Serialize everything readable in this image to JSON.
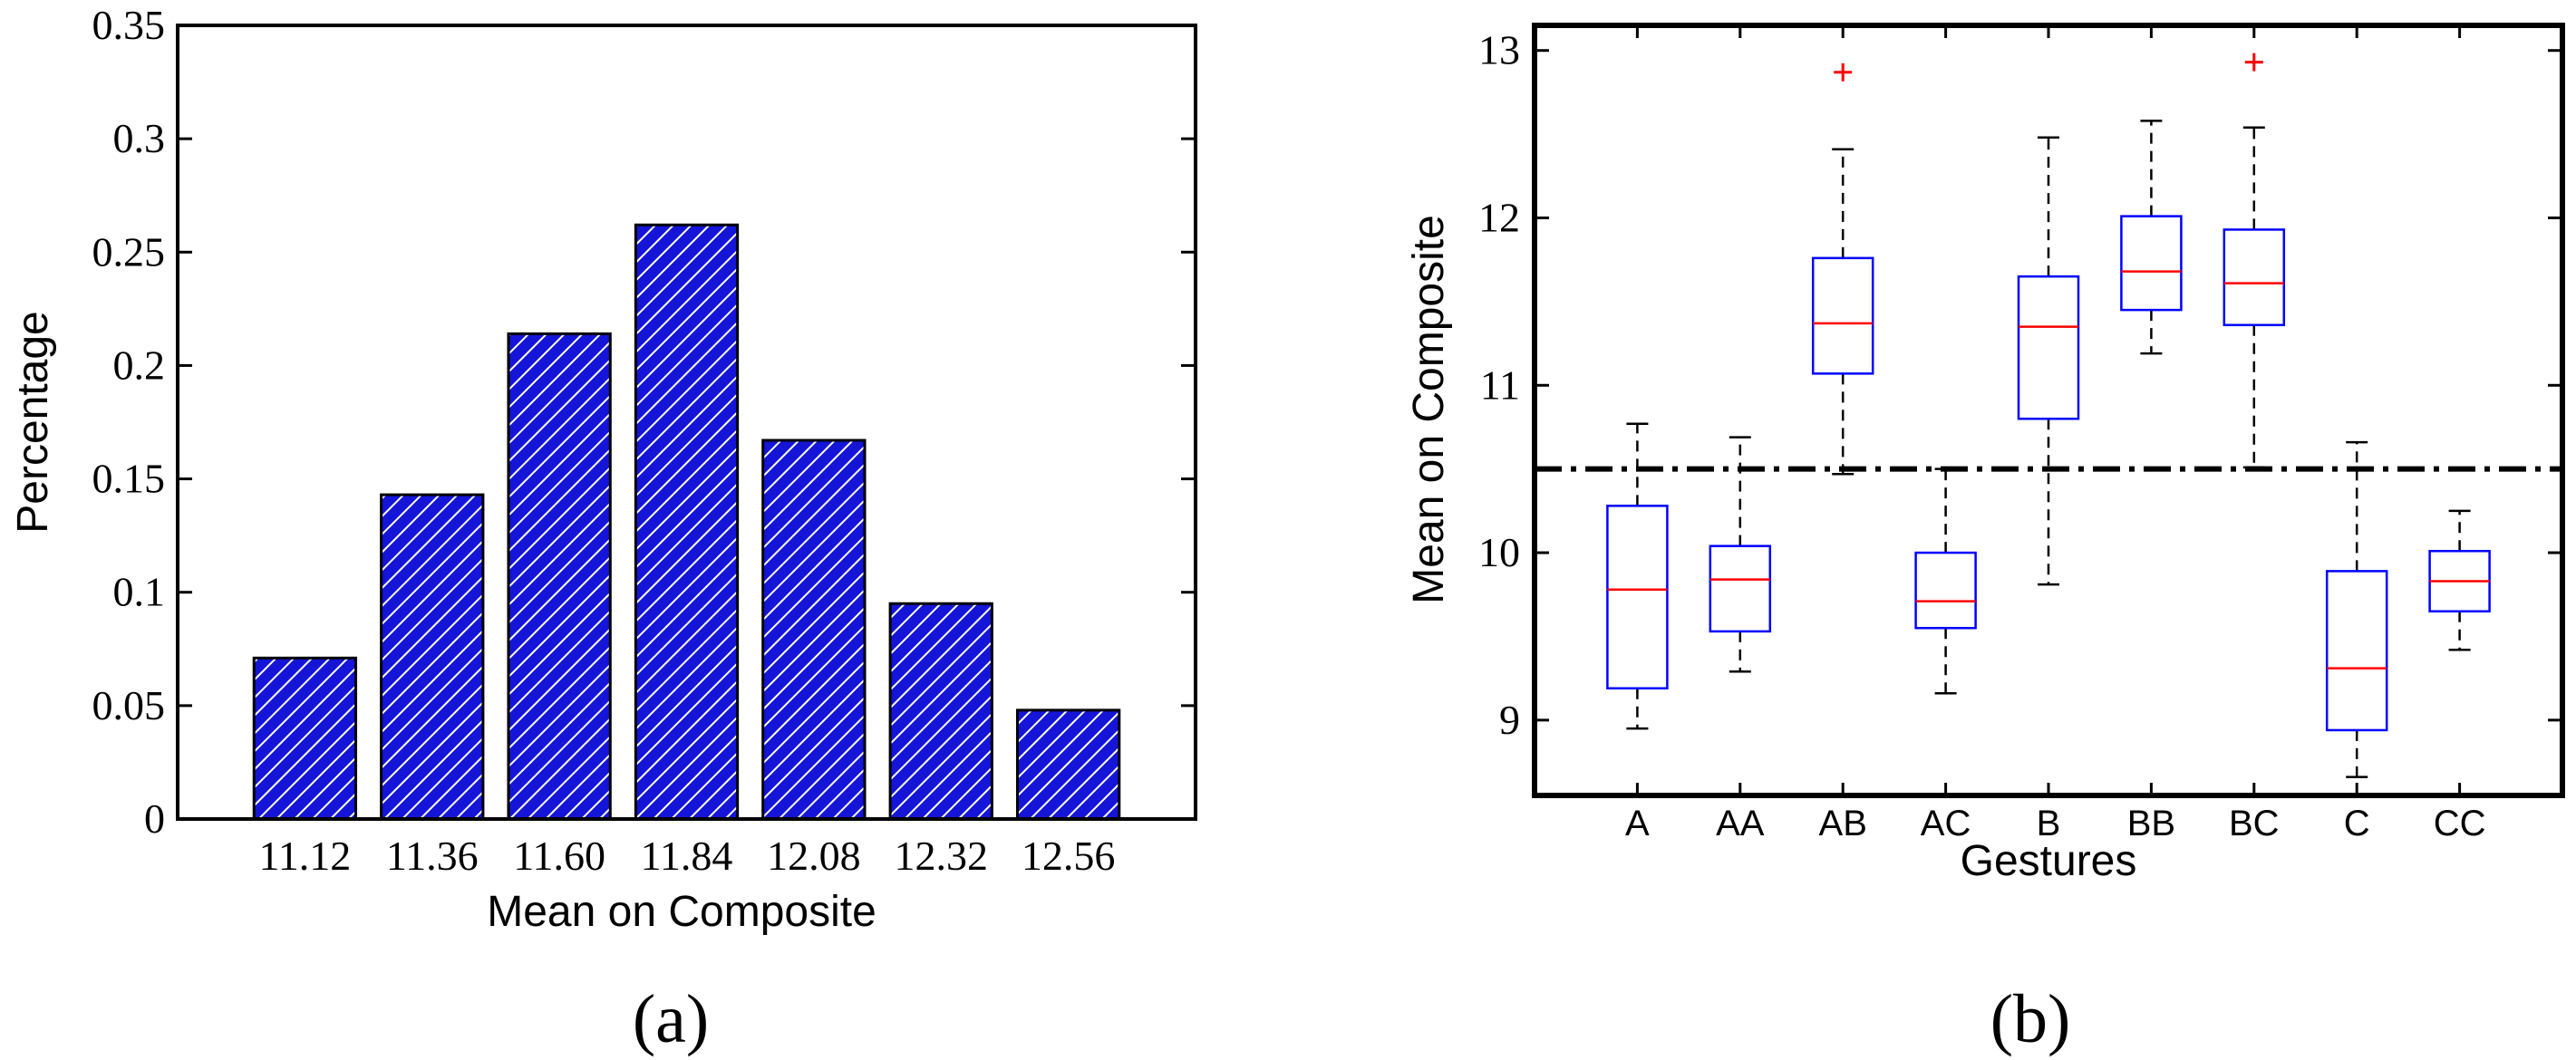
{
  "chart_data": [
    {
      "type": "bar",
      "panel_label": "(a)",
      "title": "",
      "xlabel": "Mean on Composite",
      "ylabel": "Percentage",
      "categories": [
        "11.12",
        "11.36",
        "11.60",
        "11.84",
        "12.08",
        "12.32",
        "12.56"
      ],
      "values": [
        0.071,
        0.143,
        0.214,
        0.262,
        0.167,
        0.095,
        0.048
      ],
      "ylim": [
        0,
        0.35
      ],
      "yticks": [
        0,
        0.05,
        0.1,
        0.15,
        0.2,
        0.25,
        0.3,
        0.35
      ],
      "ytick_labels": [
        "0",
        "0.05",
        "0.1",
        "0.15",
        "0.2",
        "0.25",
        "0.3",
        "0.35"
      ],
      "grid": false,
      "bar_color": "#1515d8",
      "hatch_color": "#ffffff"
    },
    {
      "type": "box",
      "panel_label": "(b)",
      "title": "",
      "xlabel": "Gestures",
      "ylabel": "Mean on Composite",
      "ylim": [
        8.55,
        13.15
      ],
      "yticks": [
        9,
        10,
        11,
        12,
        13
      ],
      "ytick_labels": [
        "9",
        "10",
        "11",
        "12",
        "13"
      ],
      "grid": false,
      "threshold": 10.5,
      "box_color": "#0000ff",
      "median_color": "#ff0000",
      "outlier_color": "#ff0000",
      "whisker_color": "#000000",
      "groups": [
        {
          "name": "A",
          "whisker_low": 8.95,
          "q1": 9.19,
          "median": 9.78,
          "q3": 10.28,
          "whisker_high": 10.77,
          "outliers": []
        },
        {
          "name": "AA",
          "whisker_low": 9.29,
          "q1": 9.53,
          "median": 9.84,
          "q3": 10.04,
          "whisker_high": 10.69,
          "outliers": []
        },
        {
          "name": "AB",
          "whisker_low": 10.47,
          "q1": 11.07,
          "median": 11.37,
          "q3": 11.76,
          "whisker_high": 12.41,
          "outliers": [
            12.87
          ]
        },
        {
          "name": "AC",
          "whisker_low": 9.16,
          "q1": 9.55,
          "median": 9.71,
          "q3": 10.0,
          "whisker_high": 10.5,
          "outliers": []
        },
        {
          "name": "B",
          "whisker_low": 9.81,
          "q1": 10.8,
          "median": 11.35,
          "q3": 11.65,
          "whisker_high": 12.48,
          "outliers": []
        },
        {
          "name": "BB",
          "whisker_low": 11.19,
          "q1": 11.45,
          "median": 11.68,
          "q3": 12.01,
          "whisker_high": 12.58,
          "outliers": []
        },
        {
          "name": "BC",
          "whisker_low": 10.51,
          "q1": 11.36,
          "median": 11.61,
          "q3": 11.93,
          "whisker_high": 12.54,
          "outliers": [
            12.93
          ]
        },
        {
          "name": "C",
          "whisker_low": 8.66,
          "q1": 8.94,
          "median": 9.31,
          "q3": 9.89,
          "whisker_high": 10.66,
          "outliers": []
        },
        {
          "name": "CC",
          "whisker_low": 9.42,
          "q1": 9.65,
          "median": 9.83,
          "q3": 10.01,
          "whisker_high": 10.25,
          "outliers": []
        }
      ]
    }
  ]
}
